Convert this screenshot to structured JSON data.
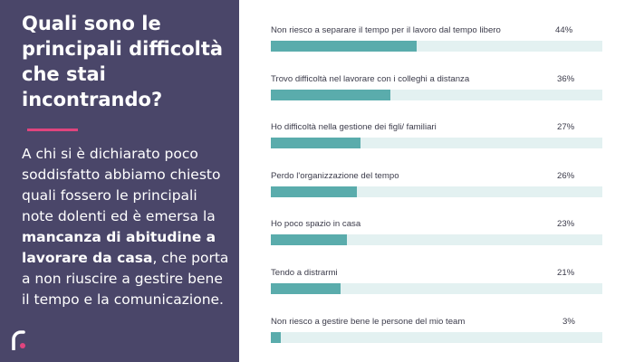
{
  "panel": {
    "title": "Quali sono le principali difficoltà che stai incontrando?",
    "description_before": "A chi si è dichiarato poco soddisfatto abbiamo chiesto quali fossero le principali note dolenti ed è emersa la ",
    "description_bold": "mancanza di abitudine a lavorare da casa",
    "description_after": ", che porta a non riuscire a gestire bene il tempo e la comunicazione.",
    "logo_icon": "brand-logo-icon",
    "colors": {
      "background": "#4a4669",
      "accent": "#e0447e"
    }
  },
  "chart_data": {
    "type": "bar",
    "orientation": "horizontal",
    "categories": [
      "Non riesco a separare il tempo per il lavoro dal tempo libero",
      "Trovo difficoltà nel lavorare con i colleghi a distanza",
      "Ho difficoltà nella gestione dei figli/ familiari",
      "Perdo l'organizzazione del tempo",
      "Ho poco spazio in casa",
      "Tendo a distrarmi",
      "Non riesco a gestire bene le persone del mio team"
    ],
    "values": [
      44,
      36,
      27,
      26,
      23,
      21,
      3
    ],
    "labels": [
      "44%",
      "36%",
      "27%",
      "26%",
      "23%",
      "21%",
      "3%"
    ],
    "xlim": [
      0,
      100
    ],
    "grid": false,
    "colors": {
      "bar": "#5aacac",
      "track": "#e3f1f1"
    }
  }
}
